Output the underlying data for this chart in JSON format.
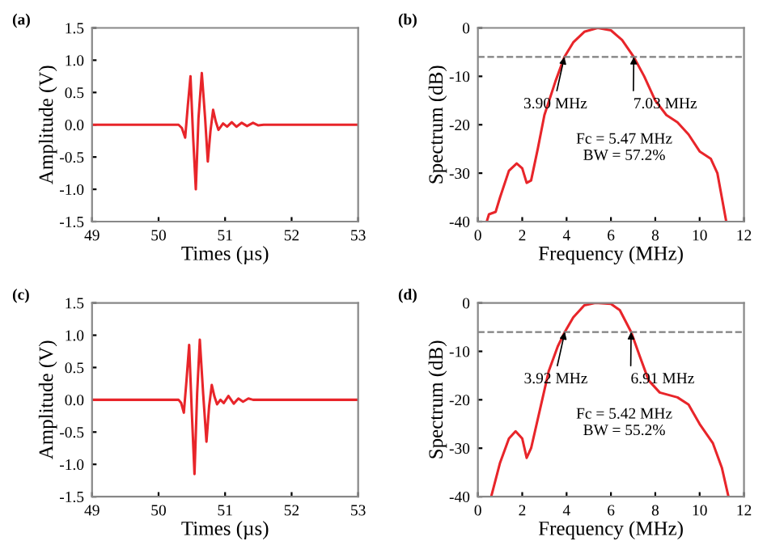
{
  "chart_data": [
    {
      "type": "line",
      "title": "(a)",
      "xlabel": "Times (µs)",
      "ylabel": "Amplitude (V)",
      "xlim": [
        49,
        53
      ],
      "ylim": [
        -1.5,
        1.5
      ],
      "xticks": [
        49,
        50,
        51,
        52,
        53
      ],
      "yticks": [
        -1.5,
        {
          "value": -1,
          "label": "-1.0"
        },
        -0.5,
        {
          "value": 0,
          "label": "0.0"
        },
        0.5,
        {
          "value": 1,
          "label": "1.0"
        },
        1.5
      ],
      "grid": false,
      "legend": false,
      "series": [
        {
          "color": "#e8252a",
          "x": [
            49,
            50.3,
            50.35,
            50.4,
            50.44,
            50.48,
            50.52,
            50.56,
            50.6,
            50.65,
            50.7,
            50.74,
            50.78,
            50.82,
            50.86,
            50.9,
            50.97,
            51.03,
            51.1,
            51.17,
            51.25,
            51.33,
            51.42,
            51.5,
            51.58,
            53
          ],
          "values": [
            0,
            0,
            -0.05,
            -0.2,
            0.3,
            0.75,
            -0.2,
            -1.0,
            0.1,
            0.8,
            0.1,
            -0.57,
            -0.1,
            0.23,
            0.05,
            -0.08,
            0.02,
            -0.03,
            0.04,
            -0.03,
            0.03,
            -0.02,
            0.03,
            -0.01,
            0,
            0
          ]
        }
      ]
    },
    {
      "type": "line",
      "title": "(b)",
      "xlabel": "Frequency (MHz)",
      "ylabel": "Spectrum (dB)",
      "xlim": [
        0,
        12
      ],
      "ylim": [
        -40,
        0
      ],
      "xticks": [
        0,
        2,
        4,
        6,
        8,
        10,
        12
      ],
      "yticks": [
        -40,
        -30,
        -20,
        -10,
        0
      ],
      "grid": false,
      "legend": false,
      "ref_lines": [
        {
          "axis": "y",
          "value": -6,
          "color": "#808080",
          "line_style": "dashed"
        }
      ],
      "annotations": [
        {
          "text": "3.90 MHz",
          "x": 3.9,
          "y": -6
        },
        {
          "text": "7.03 MHz",
          "x": 7.03,
          "y": -6
        },
        "Fc = 5.47 MHz\nBW = 57.2%"
      ],
      "series": [
        {
          "color": "#e8252a",
          "x": [
            0.4,
            0.5,
            0.8,
            1.0,
            1.4,
            1.75,
            2.0,
            2.2,
            2.4,
            2.7,
            3.0,
            3.5,
            3.9,
            4.3,
            4.8,
            5.4,
            6.0,
            6.5,
            7.03,
            7.5,
            8.0,
            8.5,
            9.0,
            9.5,
            10.0,
            10.5,
            10.8,
            11.0,
            11.2
          ],
          "values": [
            -40,
            -38.5,
            -38,
            -35,
            -29.5,
            -28,
            -29,
            -32,
            -31.5,
            -25,
            -18,
            -11,
            -6,
            -3,
            -0.8,
            0,
            -0.5,
            -2.5,
            -6,
            -10,
            -15,
            -18,
            -19.5,
            -22,
            -25.5,
            -27,
            -30,
            -35,
            -40
          ]
        }
      ]
    },
    {
      "type": "line",
      "title": "(c)",
      "xlabel": "Times (µs)",
      "ylabel": "Amplitude (V)",
      "xlim": [
        49,
        53
      ],
      "ylim": [
        -1.5,
        1.5
      ],
      "xticks": [
        49,
        50,
        51,
        52,
        53
      ],
      "yticks": [
        -1.5,
        {
          "value": -1,
          "label": "-1.0"
        },
        -0.5,
        {
          "value": 0,
          "label": "0.0"
        },
        0.5,
        {
          "value": 1,
          "label": "1.0"
        },
        1.5
      ],
      "grid": false,
      "legend": false,
      "series": [
        {
          "color": "#e8252a",
          "x": [
            49,
            50.3,
            50.34,
            50.38,
            50.42,
            50.46,
            50.5,
            50.54,
            50.58,
            50.62,
            50.67,
            50.72,
            50.76,
            50.8,
            50.84,
            50.88,
            50.93,
            50.98,
            51.05,
            51.13,
            51.2,
            51.27,
            51.35,
            51.42,
            53
          ],
          "values": [
            0,
            0,
            -0.05,
            -0.2,
            0.3,
            0.85,
            -0.2,
            -1.15,
            0.1,
            0.93,
            0.1,
            -0.65,
            -0.1,
            0.23,
            0.05,
            -0.07,
            0,
            -0.05,
            0.06,
            -0.06,
            0.02,
            -0.03,
            0.02,
            0,
            0
          ]
        }
      ]
    },
    {
      "type": "line",
      "title": "(d)",
      "xlabel": "Frequency (MHz)",
      "ylabel": "Spectrum (dB)",
      "xlim": [
        0,
        12
      ],
      "ylim": [
        -40,
        0
      ],
      "xticks": [
        0,
        2,
        4,
        6,
        8,
        10,
        12
      ],
      "yticks": [
        -40,
        -30,
        -20,
        -10,
        0
      ],
      "grid": false,
      "legend": false,
      "ref_lines": [
        {
          "axis": "y",
          "value": -6,
          "color": "#808080",
          "line_style": "dashed"
        }
      ],
      "annotations": [
        {
          "text": "3.92 MHz",
          "x": 3.92,
          "y": -6
        },
        {
          "text": "6.91 MHz",
          "x": 6.91,
          "y": -6
        },
        "Fc = 5.42 MHz\nBW = 55.2%"
      ],
      "series": [
        {
          "color": "#e8252a",
          "x": [
            0.6,
            1.0,
            1.4,
            1.7,
            2.0,
            2.2,
            2.4,
            2.8,
            3.2,
            3.6,
            3.92,
            4.3,
            4.8,
            5.3,
            6.0,
            6.4,
            6.91,
            7.3,
            7.7,
            8.2,
            9.0,
            9.5,
            10.0,
            10.6,
            11.0,
            11.3
          ],
          "values": [
            -40,
            -33,
            -28,
            -26.5,
            -28,
            -32,
            -30,
            -22,
            -14,
            -9,
            -6,
            -3,
            -0.5,
            0,
            -0.2,
            -1.5,
            -6,
            -11,
            -16,
            -18.5,
            -19.5,
            -21,
            -25,
            -29,
            -34,
            -40
          ]
        }
      ]
    }
  ]
}
